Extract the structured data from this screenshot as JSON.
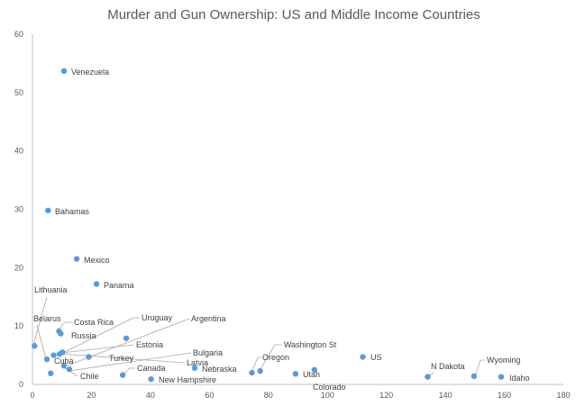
{
  "chart_data": {
    "type": "scatter",
    "title": "Murder and Gun Ownership: US and Middle Income Countries",
    "xlabel": "",
    "ylabel": "",
    "xlim": [
      0,
      180
    ],
    "ylim": [
      0,
      60
    ],
    "xticks": [
      "0",
      "20",
      "40",
      "60",
      "80",
      "100",
      "120",
      "140",
      "160",
      "180"
    ],
    "yticks": [
      "0",
      "10",
      "20",
      "30",
      "40",
      "50",
      "60"
    ],
    "grid": false,
    "legend": "none",
    "marker_color": "#5b9bd5",
    "points": [
      {
        "label": "Venezuela",
        "x": 10.7,
        "y": 53.7
      },
      {
        "label": "Bahamas",
        "x": 5.3,
        "y": 29.8
      },
      {
        "label": "Mexico",
        "x": 15.0,
        "y": 21.5
      },
      {
        "label": "Panama",
        "x": 21.7,
        "y": 17.2
      },
      {
        "label": "Lithuania",
        "x": 0.7,
        "y": 6.6
      },
      {
        "label": "Belarus",
        "x": 4.9,
        "y": 4.3
      },
      {
        "label": "Costa Rica",
        "x": 9.0,
        "y": 9.1
      },
      {
        "label": "Russia",
        "x": 9.6,
        "y": 8.7
      },
      {
        "label": "Cuba",
        "x": 7.2,
        "y": 5.0
      },
      {
        "label": "Chile",
        "x": 10.7,
        "y": 3.2
      },
      {
        "label": "Uruguay",
        "x": 31.8,
        "y": 7.9
      },
      {
        "label": "Argentina",
        "x": 10.2,
        "y": 5.5
      },
      {
        "label": "Latvia",
        "x": 12.5,
        "y": 2.6
      },
      {
        "label": "Estonia",
        "x": 9.2,
        "y": 5.2
      },
      {
        "label": "Bulgaria",
        "x": 6.2,
        "y": 1.9
      },
      {
        "label": "Turkey",
        "x": 19.1,
        "y": 4.7
      },
      {
        "label": "Canada",
        "x": 30.6,
        "y": 1.6
      },
      {
        "label": "New Hampshire",
        "x": 40.2,
        "y": 0.9
      },
      {
        "label": "Nebraska",
        "x": 55.0,
        "y": 2.8
      },
      {
        "label": "Oregon",
        "x": 74.4,
        "y": 2.0
      },
      {
        "label": "Washington St",
        "x": 77.2,
        "y": 2.3
      },
      {
        "label": "Utah",
        "x": 89.2,
        "y": 1.8
      },
      {
        "label": "Colorado",
        "x": 95.6,
        "y": 2.5
      },
      {
        "label": "US",
        "x": 112.0,
        "y": 4.7
      },
      {
        "label": "N Dakota",
        "x": 134.0,
        "y": 1.3
      },
      {
        "label": "Wyoming",
        "x": 149.7,
        "y": 1.4
      },
      {
        "label": "Idaho",
        "x": 158.9,
        "y": 1.3
      }
    ]
  }
}
